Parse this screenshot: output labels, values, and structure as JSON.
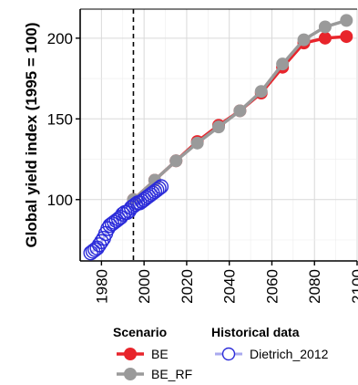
{
  "chart_data": {
    "type": "line",
    "title": "",
    "xlabel": "",
    "ylabel": "Global yield index (1995 = 100)",
    "xlim": [
      1970,
      2100
    ],
    "ylim": [
      62,
      218
    ],
    "x_ticks": [
      1980,
      2000,
      2020,
      2040,
      2060,
      2080,
      2100
    ],
    "y_ticks": [
      100,
      150,
      200
    ],
    "grid": true,
    "reference_line_x": 1995,
    "series": [
      {
        "name": "BE",
        "group": "Scenario",
        "color": "#e8242b",
        "marker": "filled-circle",
        "x": [
          1995,
          2005,
          2015,
          2025,
          2035,
          2045,
          2055,
          2065,
          2075,
          2085,
          2095
        ],
        "y": [
          100,
          112,
          124,
          136,
          146,
          155,
          166,
          182,
          197,
          200,
          201
        ]
      },
      {
        "name": "BE_RF",
        "group": "Scenario",
        "color": "#9a9a9a",
        "marker": "filled-circle",
        "x": [
          1995,
          2005,
          2015,
          2025,
          2035,
          2045,
          2055,
          2065,
          2075,
          2085,
          2095
        ],
        "y": [
          100,
          112,
          124,
          135,
          145,
          155,
          167,
          184,
          199,
          207,
          211
        ]
      },
      {
        "name": "Dietrich_2012",
        "group": "Historical data",
        "color": "#2b2bd9",
        "marker": "open-circle",
        "x": [
          1975,
          1976,
          1977,
          1978,
          1979,
          1980,
          1981,
          1982,
          1983,
          1984,
          1985,
          1986,
          1987,
          1988,
          1989,
          1990,
          1991,
          1992,
          1993,
          1994,
          1995,
          1996,
          1997,
          1998,
          1999,
          2000,
          2001,
          2002,
          2003,
          2004,
          2005,
          2006,
          2007,
          2008
        ],
        "y": [
          67,
          68,
          69,
          70,
          72,
          74,
          76,
          79,
          82,
          84,
          85,
          86,
          87,
          88,
          89,
          91,
          92,
          92,
          93,
          95,
          96,
          97,
          98,
          98,
          99,
          100,
          101,
          102,
          103,
          104,
          105,
          106,
          107,
          108
        ]
      }
    ],
    "legend": {
      "placement": "bottom",
      "groups": [
        {
          "title": "Scenario",
          "entries": [
            "BE",
            "BE_RF"
          ]
        },
        {
          "title": "Historical data",
          "entries": [
            "Dietrich_2012"
          ]
        }
      ]
    }
  }
}
